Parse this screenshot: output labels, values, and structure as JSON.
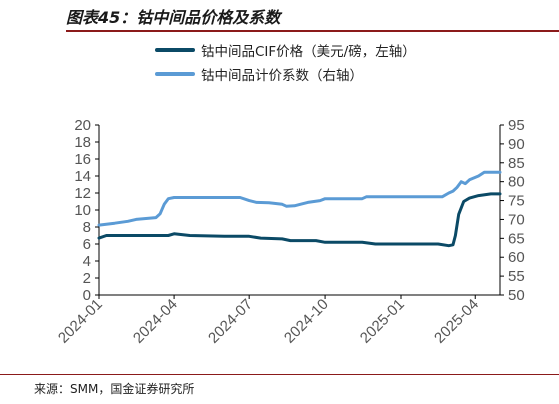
{
  "title": "图表45：钴中间品价格及系数",
  "source": "来源：SMM，国金证券研究所",
  "chart_data": {
    "type": "line",
    "x_ticks": [
      "2024-01",
      "2024-04",
      "2024-07",
      "2024-10",
      "2025-01",
      "2025-04"
    ],
    "x_tick_dates": [
      "2024-01-01",
      "2024-04-01",
      "2024-07-01",
      "2024-10-01",
      "2025-01-01",
      "2025-04-01"
    ],
    "x_range": [
      "2024-01-01",
      "2025-05-01"
    ],
    "y_left": {
      "min": 0,
      "max": 20,
      "step": 2,
      "ticks": [
        "0",
        "2",
        "4",
        "6",
        "8",
        "10",
        "12",
        "14",
        "16",
        "18",
        "20"
      ]
    },
    "y_right": {
      "min": 50,
      "max": 95,
      "step": 5,
      "ticks": [
        "50",
        "55",
        "60",
        "65",
        "70",
        "75",
        "80",
        "85",
        "90",
        "95"
      ]
    },
    "grid": false,
    "legend": "top",
    "series": [
      {
        "name": "钴中间品CIF价格（美元/磅，左轴）",
        "axis": "left",
        "color": "#0b4a66",
        "points": [
          [
            "2024-01-01",
            6.7
          ],
          [
            "2024-01-10",
            7.0
          ],
          [
            "2024-02-15",
            7.0
          ],
          [
            "2024-03-25",
            7.0
          ],
          [
            "2024-04-01",
            7.2
          ],
          [
            "2024-04-20",
            7.0
          ],
          [
            "2024-06-01",
            6.9
          ],
          [
            "2024-07-01",
            6.9
          ],
          [
            "2024-07-15",
            6.7
          ],
          [
            "2024-08-10",
            6.6
          ],
          [
            "2024-08-20",
            6.4
          ],
          [
            "2024-09-20",
            6.4
          ],
          [
            "2024-10-01",
            6.2
          ],
          [
            "2024-11-15",
            6.2
          ],
          [
            "2024-12-01",
            6.0
          ],
          [
            "2025-02-15",
            6.0
          ],
          [
            "2025-02-28",
            5.8
          ],
          [
            "2025-03-05",
            5.9
          ],
          [
            "2025-03-08",
            7.0
          ],
          [
            "2025-03-12",
            9.5
          ],
          [
            "2025-03-18",
            11.0
          ],
          [
            "2025-03-25",
            11.4
          ],
          [
            "2025-04-05",
            11.7
          ],
          [
            "2025-04-20",
            11.9
          ],
          [
            "2025-05-01",
            11.9
          ]
        ]
      },
      {
        "name": "钴中间品计价系数（右轴）",
        "axis": "right",
        "color": "#5b9bd5",
        "points": [
          [
            "2024-01-01",
            68.5
          ],
          [
            "2024-01-20",
            69.0
          ],
          [
            "2024-02-05",
            69.5
          ],
          [
            "2024-02-15",
            70.0
          ],
          [
            "2024-03-10",
            70.5
          ],
          [
            "2024-03-15",
            71.5
          ],
          [
            "2024-03-20",
            74.0
          ],
          [
            "2024-03-25",
            75.5
          ],
          [
            "2024-04-01",
            75.8
          ],
          [
            "2024-06-20",
            75.8
          ],
          [
            "2024-07-01",
            75.0
          ],
          [
            "2024-07-10",
            74.5
          ],
          [
            "2024-07-25",
            74.4
          ],
          [
            "2024-08-10",
            74.0
          ],
          [
            "2024-08-15",
            73.5
          ],
          [
            "2024-08-25",
            73.6
          ],
          [
            "2024-09-01",
            74.0
          ],
          [
            "2024-09-10",
            74.5
          ],
          [
            "2024-09-25",
            75.0
          ],
          [
            "2024-10-01",
            75.5
          ],
          [
            "2024-11-15",
            75.5
          ],
          [
            "2024-11-20",
            76.0
          ],
          [
            "2025-02-20",
            76.0
          ],
          [
            "2025-02-28",
            77.0
          ],
          [
            "2025-03-05",
            77.5
          ],
          [
            "2025-03-10",
            78.5
          ],
          [
            "2025-03-15",
            80.0
          ],
          [
            "2025-03-20",
            79.5
          ],
          [
            "2025-03-25",
            80.5
          ],
          [
            "2025-04-05",
            81.5
          ],
          [
            "2025-04-12",
            82.5
          ],
          [
            "2025-05-01",
            82.5
          ]
        ]
      }
    ]
  }
}
